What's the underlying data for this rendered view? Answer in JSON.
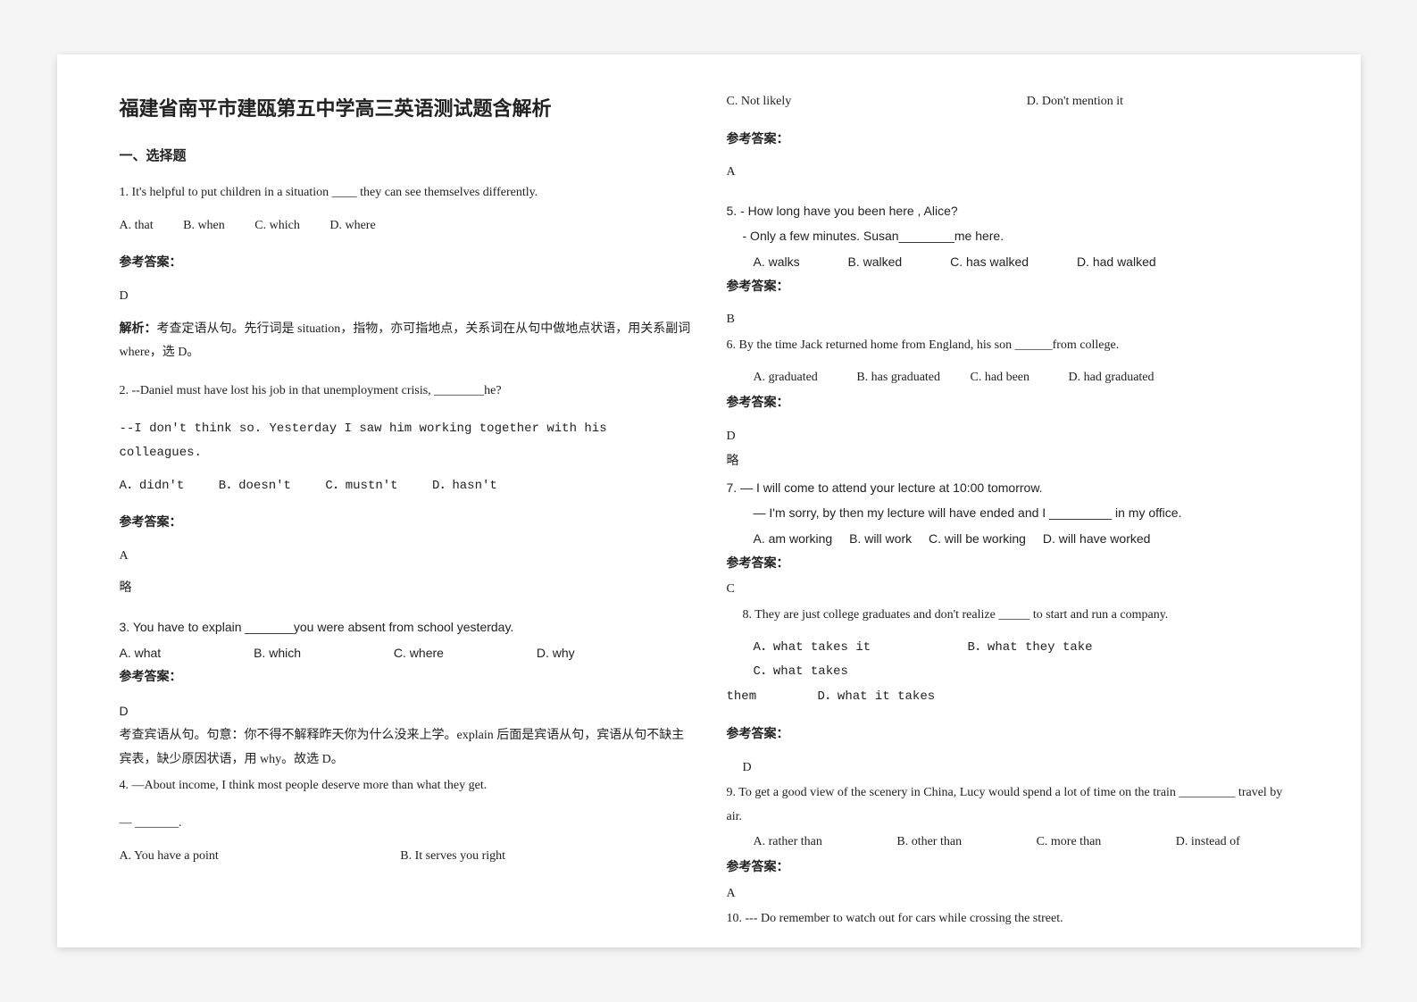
{
  "title": "福建省南平市建瓯第五中学高三英语测试题含解析",
  "section": "一、选择题",
  "left": {
    "q1": {
      "stem": "1. It's helpful to put children in a situation ____ they can see themselves differently.",
      "oA": "A. that",
      "oB": "B. when",
      "oC": "C. which",
      "oD": "D. where",
      "ansH": "参考答案：",
      "ans": "D",
      "expl": "考查定语从句。先行词是 situation，指物，亦可指地点，关系词在从句中做地点状语，用关系副词 where，选 D。",
      "explLabel": "解析："
    },
    "q2": {
      "stem1": "2. --Daniel must have lost his job in that unemployment crisis, ________he?",
      "stem2": "--I don't think so. Yesterday I saw him working together with his colleagues.",
      "oA": "A．didn't",
      "oB": "B．doesn't",
      "oC": "C．mustn't",
      "oD": "D．hasn't",
      "ansH": "参考答案：",
      "ans": "A",
      "expl": "略"
    },
    "q3": {
      "stem": "3. You have to explain _______you were absent from school yesterday.",
      "oA": "A. what",
      "oB": "B. which",
      "oC": "C. where",
      "oD": "D. why",
      "ansH": "参考答案：",
      "ans": "D",
      "expl": "考查宾语从句。句意：你不得不解释昨天你为什么没来上学。explain 后面是宾语从句，宾语从句不缺主宾表，缺少原因状语，用 why。故选 D。"
    },
    "q4": {
      "stem1": "4. —About income, I think most people deserve more than what they get.",
      "stem2": "— _______.",
      "oA": "A. You have a point",
      "oB": "B. It serves you right"
    }
  },
  "right": {
    "q4c": {
      "oC": "C. Not likely",
      "oD": "D. Don't mention it",
      "ansH": "参考答案：",
      "ans": "A"
    },
    "q5": {
      "stem1": "5. - How long have you been here , Alice?",
      "stem2": "- Only a few minutes. Susan________me here.",
      "oA": "A. walks",
      "oB": "B. walked",
      "oC": "C. has walked",
      "oD": "D. had walked",
      "ansH": "参考答案：",
      "ans": "B"
    },
    "q6": {
      "stem": "6. By the time Jack returned home from England, his son ______from college.",
      "oA": "A. graduated",
      "oB": "B. has graduated",
      "oC": "C. had been",
      "oD": "D. had graduated",
      "ansH": "参考答案：",
      "ans": "D",
      "expl": "略"
    },
    "q7": {
      "stem1": "7. — I will come to attend your lecture at 10:00 tomorrow.",
      "stem2": "— I'm sorry, by then my lecture will have ended and I _________ in my office.",
      "oA": "A. am working",
      "oB": "B. will work",
      "oC": "C. will be working",
      "oD": "D. will have worked",
      "ansH": "参考答案：",
      "ans": "C"
    },
    "q8": {
      "stem": "8. They are just college graduates and don't realize _____ to start and run a company.",
      "oA": "A．what takes it",
      "oB": "B．what they take",
      "oC": "C．what takes",
      "line2a": "them",
      "line2b": "D．what it takes",
      "ansH": "参考答案：",
      "ans": "D"
    },
    "q9": {
      "stem": "9. To get a good view of the scenery in China, Lucy would spend a lot of time on the train _________ travel by air.",
      "oA": "A. rather than",
      "oB": "B. other than",
      "oC": "C. more than",
      "oD": "D. instead of",
      "ansH": "参考答案：",
      "ans": "A"
    },
    "q10": {
      "stem": "10. --- Do remember to watch out for cars while crossing the street."
    }
  }
}
